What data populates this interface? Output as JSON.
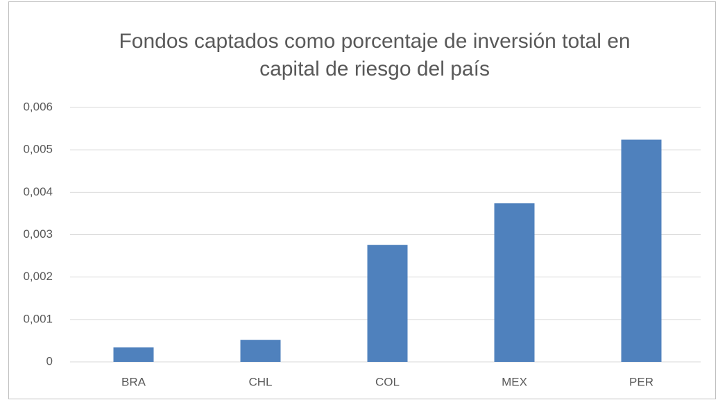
{
  "chart_data": {
    "type": "bar",
    "title": "Fondos captados como porcentaje de inversión total en capital de riesgo del país",
    "categories": [
      "BRA",
      "CHL",
      "COL",
      "MEX",
      "PER"
    ],
    "values": [
      0.00034,
      0.00052,
      0.00276,
      0.00374,
      0.00524
    ],
    "color": "#4f81bd",
    "ylim": [
      0,
      0.006
    ],
    "yticks": [
      0,
      {
        "value": 0.001,
        "label": "0,001"
      },
      {
        "value": 0.002,
        "label": "0,002"
      },
      {
        "value": 0.003,
        "label": "0,003"
      },
      {
        "value": 0.004,
        "label": "0,004"
      },
      {
        "value": 0.005,
        "label": "0,005"
      },
      {
        "value": 0.006,
        "label": "0,006"
      }
    ],
    "grid": true
  }
}
